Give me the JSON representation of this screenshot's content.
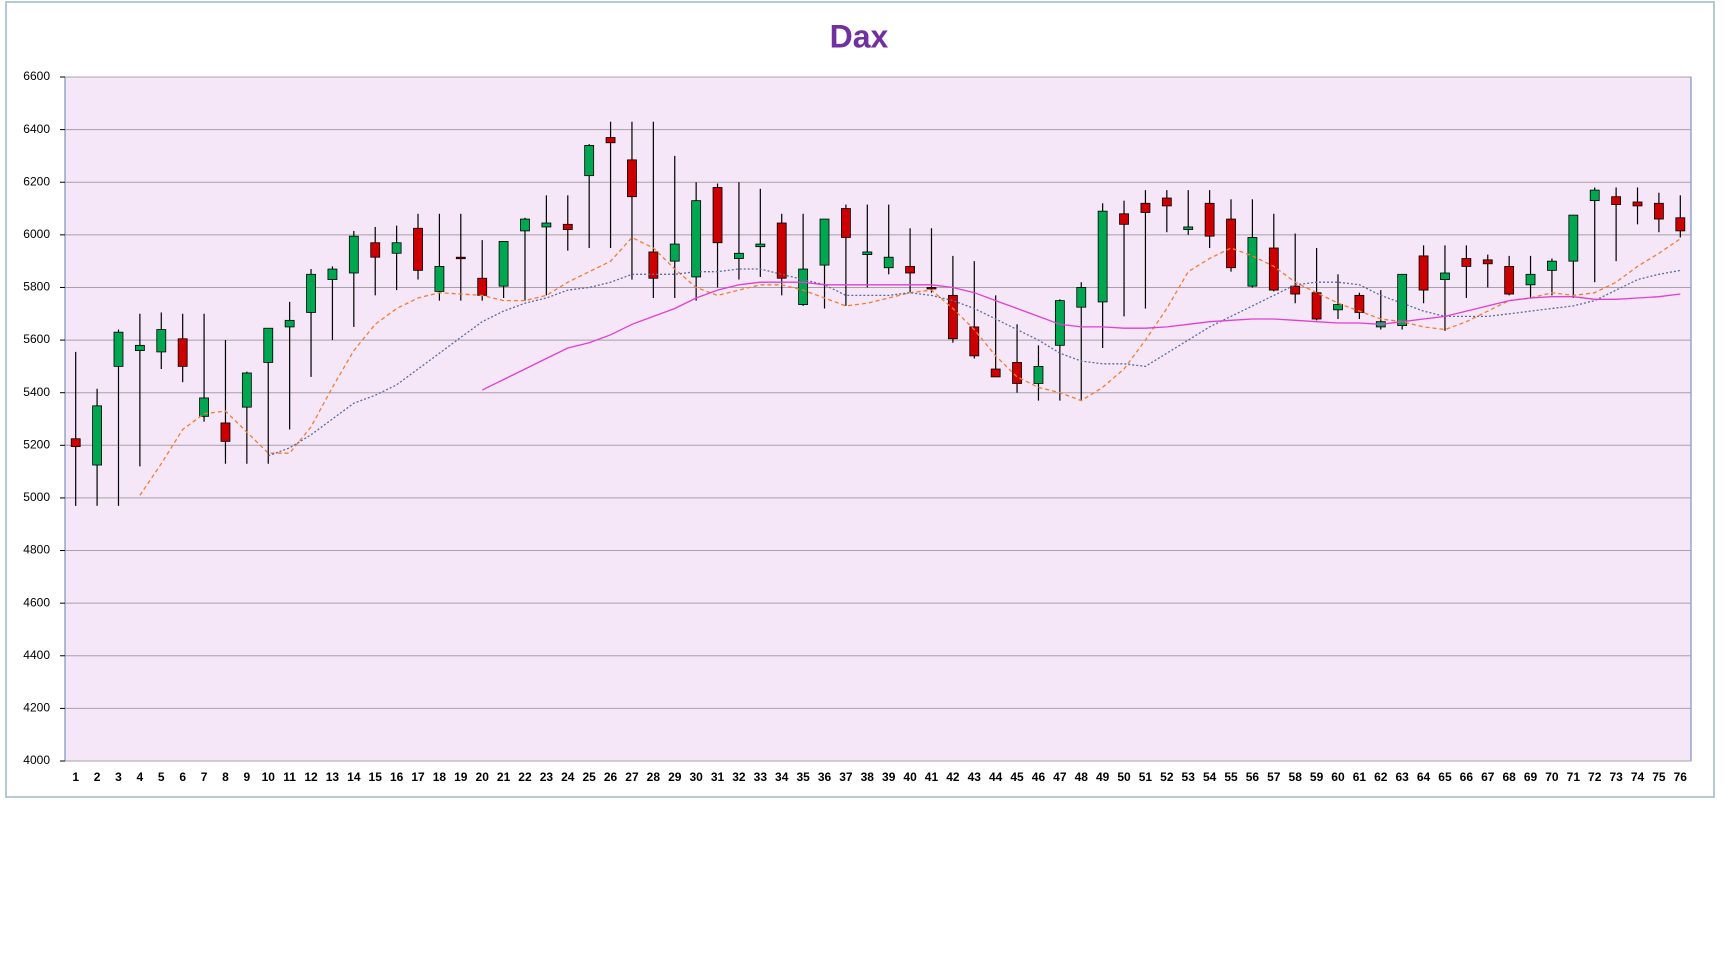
{
  "chart_data": {
    "type": "candlestick",
    "title": "Dax",
    "categories": [
      1,
      2,
      3,
      4,
      5,
      6,
      7,
      8,
      9,
      10,
      11,
      12,
      13,
      14,
      15,
      16,
      17,
      18,
      19,
      20,
      21,
      22,
      23,
      24,
      25,
      26,
      27,
      28,
      29,
      30,
      31,
      32,
      33,
      34,
      35,
      36,
      37,
      38,
      39,
      40,
      41,
      42,
      43,
      44,
      45,
      46,
      47,
      48,
      49,
      50,
      51,
      52,
      53,
      54,
      55,
      56,
      57,
      58,
      59,
      60,
      61,
      62,
      63,
      64,
      65,
      66,
      67,
      68,
      69,
      70,
      71,
      72,
      73,
      74,
      75,
      76
    ],
    "open": [
      5225,
      5125,
      5500,
      5560,
      5555,
      5605,
      5310,
      5285,
      5345,
      5515,
      5650,
      5705,
      5830,
      5855,
      5970,
      5930,
      6025,
      5785,
      5915,
      5835,
      5805,
      6015,
      6030,
      6040,
      6225,
      6370,
      6285,
      5935,
      5900,
      5840,
      6180,
      5910,
      5955,
      6045,
      5735,
      5885,
      6100,
      5925,
      5875,
      5880,
      5800,
      5770,
      5650,
      5490,
      5515,
      5435,
      5580,
      5725,
      5745,
      6080,
      6120,
      6140,
      6020,
      6120,
      6060,
      5805,
      5950,
      5805,
      5780,
      5715,
      5770,
      5650,
      5655,
      5920,
      5830,
      5910,
      5905,
      5880,
      5810,
      5865,
      5900,
      6130,
      6145,
      6125,
      6120,
      6065
    ],
    "high": [
      5555,
      5415,
      5640,
      5700,
      5705,
      5700,
      5700,
      5600,
      5480,
      5645,
      5745,
      5870,
      5880,
      6015,
      6030,
      6035,
      6080,
      6080,
      6080,
      5980,
      5975,
      6065,
      6150,
      6150,
      6345,
      6430,
      6430,
      6430,
      6300,
      6200,
      6195,
      6200,
      6175,
      6080,
      6080,
      6060,
      6115,
      6115,
      6115,
      6025,
      6025,
      5920,
      5900,
      5770,
      5660,
      5580,
      5755,
      5820,
      6120,
      6130,
      6170,
      6170,
      6170,
      6170,
      6135,
      6135,
      6080,
      6005,
      5950,
      5850,
      5780,
      5790,
      5850,
      5960,
      5960,
      5960,
      5925,
      5920,
      5920,
      5910,
      6075,
      6180,
      6180,
      6180,
      6160,
      6150
    ],
    "low": [
      4970,
      4970,
      4970,
      5120,
      5490,
      5440,
      5290,
      5130,
      5130,
      5130,
      5260,
      5460,
      5600,
      5650,
      5770,
      5790,
      5830,
      5750,
      5750,
      5750,
      5760,
      5750,
      5770,
      5940,
      5950,
      5950,
      5830,
      5760,
      5760,
      5750,
      5800,
      5830,
      5840,
      5770,
      5730,
      5720,
      5730,
      5800,
      5850,
      5780,
      5780,
      5590,
      5530,
      5460,
      5400,
      5370,
      5370,
      5370,
      5570,
      5690,
      5720,
      6010,
      6000,
      5950,
      5860,
      5800,
      5785,
      5740,
      5675,
      5680,
      5680,
      5640,
      5640,
      5740,
      5635,
      5760,
      5800,
      5770,
      5760,
      5770,
      5760,
      5820,
      5900,
      6040,
      6010,
      5990
    ],
    "close": [
      5195,
      5350,
      5630,
      5580,
      5640,
      5500,
      5380,
      5215,
      5475,
      5645,
      5675,
      5850,
      5870,
      5995,
      5915,
      5970,
      5865,
      5880,
      5910,
      5770,
      5975,
      6060,
      6045,
      6020,
      6340,
      6350,
      6145,
      5835,
      5965,
      6130,
      5970,
      5930,
      5965,
      5835,
      5870,
      6060,
      5990,
      5935,
      5915,
      5855,
      5795,
      5605,
      5540,
      5460,
      5435,
      5500,
      5750,
      5800,
      6090,
      6040,
      6085,
      6110,
      6030,
      5995,
      5875,
      5990,
      5790,
      5775,
      5680,
      5735,
      5705,
      5670,
      5850,
      5790,
      5855,
      5880,
      5890,
      5775,
      5850,
      5900,
      6075,
      6170,
      6115,
      6110,
      6060,
      6015
    ],
    "up_color": "#00a650",
    "down_color": "#cc0000",
    "series": [
      {
        "color": "#f07f30",
        "style": "dashed",
        "values": [
          null,
          null,
          null,
          5010,
          5130,
          5260,
          5320,
          5330,
          5250,
          5170,
          5170,
          5270,
          5420,
          5560,
          5660,
          5720,
          5760,
          5780,
          5775,
          5770,
          5750,
          5750,
          5770,
          5820,
          5860,
          5900,
          5990,
          5950,
          5870,
          5800,
          5770,
          5790,
          5810,
          5810,
          5790,
          5760,
          5730,
          5740,
          5760,
          5780,
          5790,
          5720,
          5640,
          5540,
          5460,
          5420,
          5400,
          5370,
          5420,
          5490,
          5600,
          5720,
          5860,
          5910,
          5950,
          5920,
          5880,
          5820,
          5780,
          5740,
          5710,
          5680,
          5670,
          5650,
          5640,
          5670,
          5710,
          5750,
          5760,
          5780,
          5770,
          5780,
          5820,
          5880,
          5930,
          5985
        ]
      },
      {
        "color": "#5a6e9a",
        "style": "dotted",
        "values": [
          null,
          null,
          null,
          null,
          null,
          null,
          null,
          null,
          null,
          5160,
          5190,
          5240,
          5300,
          5360,
          5390,
          5430,
          5490,
          5550,
          5610,
          5670,
          5710,
          5740,
          5760,
          5790,
          5800,
          5820,
          5850,
          5850,
          5850,
          5860,
          5860,
          5870,
          5870,
          5850,
          5830,
          5810,
          5770,
          5770,
          5770,
          5780,
          5770,
          5750,
          5720,
          5680,
          5640,
          5600,
          5550,
          5520,
          5510,
          5510,
          5500,
          5550,
          5600,
          5650,
          5690,
          5730,
          5770,
          5810,
          5820,
          5820,
          5810,
          5770,
          5740,
          5710,
          5690,
          5690,
          5690,
          5700,
          5710,
          5720,
          5730,
          5750,
          5790,
          5830,
          5850,
          5865
        ]
      },
      {
        "color": "#e040d0",
        "style": "solid",
        "values": [
          null,
          null,
          null,
          null,
          null,
          null,
          null,
          null,
          null,
          null,
          null,
          null,
          null,
          null,
          null,
          null,
          null,
          null,
          null,
          5410,
          5450,
          5490,
          5530,
          5570,
          5590,
          5620,
          5660,
          5690,
          5720,
          5760,
          5790,
          5810,
          5820,
          5820,
          5820,
          5810,
          5810,
          5810,
          5810,
          5810,
          5810,
          5800,
          5780,
          5750,
          5720,
          5690,
          5660,
          5650,
          5650,
          5645,
          5645,
          5650,
          5660,
          5670,
          5675,
          5680,
          5680,
          5675,
          5670,
          5665,
          5665,
          5660,
          5670,
          5680,
          5690,
          5710,
          5730,
          5750,
          5760,
          5765,
          5765,
          5755,
          5755,
          5760,
          5765,
          5775
        ]
      }
    ],
    "ylim": [
      4000,
      6600
    ],
    "yticks": [
      4000,
      4200,
      4400,
      4600,
      4800,
      5000,
      5200,
      5400,
      5600,
      5800,
      6000,
      6200,
      6400,
      6600
    ],
    "grid": true
  }
}
